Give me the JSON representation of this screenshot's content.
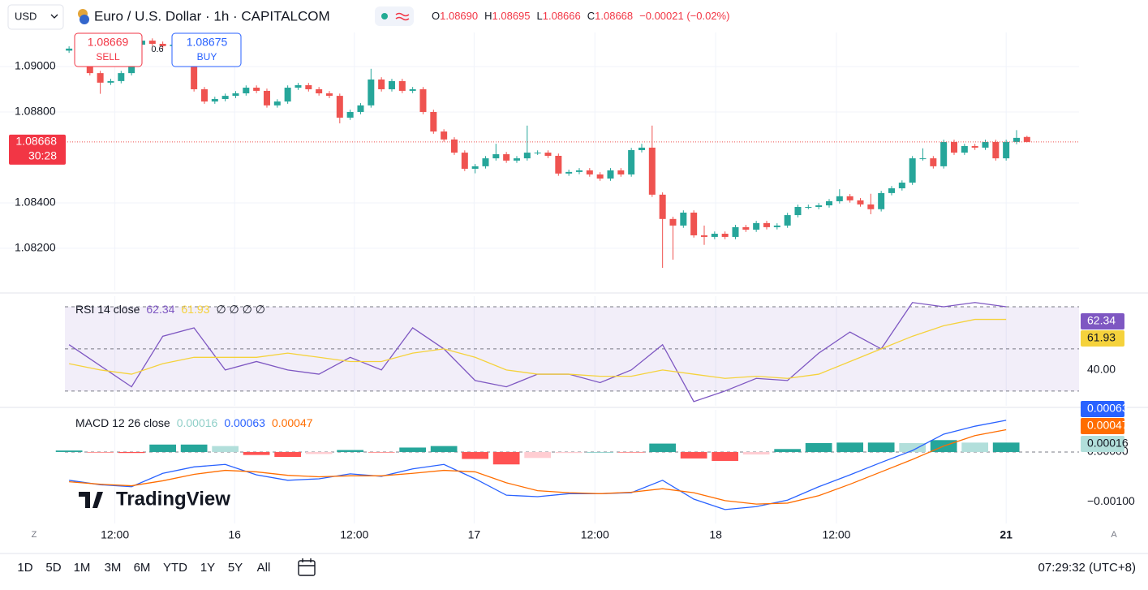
{
  "toolbar": {
    "currency": "USD",
    "title": "Euro / U.S. Dollar · 1h · CAPITALCOM",
    "ohlc": [
      {
        "key": "O",
        "value": "1.08690"
      },
      {
        "key": "H",
        "value": "1.08695"
      },
      {
        "key": "L",
        "value": "1.08666"
      },
      {
        "key": "C",
        "value": "1.08668"
      }
    ],
    "change": "−0.00021 (−0.02%)"
  },
  "trade": {
    "sell_price": 1.08669,
    "sell": "SELL",
    "spread": 0.6,
    "buy_price": 1.08675,
    "buy": "BUY"
  },
  "chart_data": [
    {
      "type": "candlestick",
      "xlim": [
        -0.4,
        97
      ],
      "ylim": [
        1.08014,
        1.0915
      ],
      "xticks": [
        {
          "value": 4.4,
          "label": "12:00"
        },
        {
          "value": 15.9,
          "label": "16"
        },
        {
          "value": 27.4,
          "label": "12:00"
        },
        {
          "value": 38.9,
          "label": "17"
        },
        {
          "value": 50.5,
          "label": "12:00"
        },
        {
          "value": 62.1,
          "label": "18"
        },
        {
          "value": 73.7,
          "label": "12:00"
        },
        {
          "value": 90,
          "label": "21"
        }
      ],
      "yticks": [
        {
          "value": 1.09,
          "label": "1.09000"
        },
        {
          "value": 1.088,
          "label": "1.08800"
        },
        {
          "value": 1.084,
          "label": "1.08400"
        },
        {
          "value": 1.082,
          "label": "1.08200"
        }
      ],
      "grid": true,
      "up_color": "#26a69a",
      "down_color": "#ef5350",
      "open": [
        1.0907,
        1.09079,
        1.09085,
        1.08971,
        1.08929,
        1.08936,
        1.08971,
        1.09096,
        1.09114,
        1.091,
        1.0909,
        1.09096,
        1.09079,
        1.089,
        1.08846,
        1.08857,
        1.08871,
        1.08882,
        1.08907,
        1.08893,
        1.08829,
        1.08846,
        1.08907,
        1.08918,
        1.089,
        1.08882,
        1.08871,
        1.08775,
        1.088,
        1.08829,
        1.08943,
        1.089,
        1.08936,
        1.08893,
        1.089,
        1.088,
        1.08714,
        1.08679,
        1.08621,
        1.0855,
        1.08561,
        1.08596,
        1.08614,
        1.08586,
        1.08596,
        1.08621,
        1.08621,
        1.08607,
        1.08529,
        1.08536,
        1.08543,
        1.08525,
        1.08507,
        1.08543,
        1.08525,
        1.08632,
        1.08643,
        1.08436,
        1.08329,
        1.083,
        1.08357,
        1.08257,
        1.0825,
        1.08264,
        1.0825,
        1.08293,
        1.08282,
        1.08311,
        1.08293,
        1.083,
        1.08346,
        1.08382,
        1.08382,
        1.08389,
        1.08407,
        1.08429,
        1.08411,
        1.08393,
        1.08372,
        1.08443,
        1.08464,
        1.08489,
        1.08596,
        1.08596,
        1.08561,
        1.08668,
        1.08621,
        1.0865,
        1.08643,
        1.08668,
        1.08596,
        1.08668,
        1.0869
      ],
      "high": [
        1.09089,
        1.09095,
        1.09095,
        1.08981,
        1.08946,
        1.08981,
        1.09106,
        1.09124,
        1.09124,
        1.0911,
        1.09106,
        1.09106,
        1.09089,
        1.0891,
        1.08867,
        1.08881,
        1.08892,
        1.08917,
        1.08917,
        1.08903,
        1.08856,
        1.08917,
        1.08928,
        1.08928,
        1.0891,
        1.08892,
        1.08881,
        1.0881,
        1.08839,
        1.0899,
        1.08953,
        1.08946,
        1.08946,
        1.0891,
        1.0891,
        1.0881,
        1.08724,
        1.08689,
        1.08631,
        1.08571,
        1.08606,
        1.0866,
        1.08624,
        1.08606,
        1.0874,
        1.08631,
        1.08631,
        1.08617,
        1.08546,
        1.08553,
        1.08553,
        1.08535,
        1.08553,
        1.08553,
        1.08642,
        1.0866,
        1.0874,
        1.08446,
        1.08339,
        1.08367,
        1.08367,
        1.083,
        1.08274,
        1.08274,
        1.08303,
        1.08303,
        1.08321,
        1.08321,
        1.0831,
        1.08356,
        1.08392,
        1.08392,
        1.08399,
        1.08417,
        1.0846,
        1.08439,
        1.08421,
        1.0844,
        1.08453,
        1.08474,
        1.08499,
        1.08606,
        1.0864,
        1.08606,
        1.08678,
        1.08678,
        1.0866,
        1.0866,
        1.08678,
        1.08678,
        1.08678,
        1.0872,
        1.08695
      ],
      "low": [
        1.0906,
        1.09069,
        1.08961,
        1.0888,
        1.08919,
        1.08926,
        1.08961,
        1.09086,
        1.0909,
        1.0908,
        1.0908,
        1.09069,
        1.0889,
        1.08836,
        1.08836,
        1.08847,
        1.08861,
        1.08872,
        1.08883,
        1.08819,
        1.08819,
        1.08836,
        1.08897,
        1.0889,
        1.08872,
        1.08861,
        1.0875,
        1.08765,
        1.0879,
        1.08819,
        1.0889,
        1.0889,
        1.08883,
        1.08883,
        1.0879,
        1.08704,
        1.08669,
        1.08611,
        1.0854,
        1.0853,
        1.08551,
        1.08586,
        1.08576,
        1.08576,
        1.08586,
        1.08611,
        1.08597,
        1.08519,
        1.08519,
        1.08526,
        1.08515,
        1.08497,
        1.08497,
        1.08515,
        1.08515,
        1.08622,
        1.08426,
        1.08114,
        1.0815,
        1.0829,
        1.08247,
        1.08215,
        1.0824,
        1.0824,
        1.0824,
        1.08272,
        1.08272,
        1.08283,
        1.08283,
        1.0829,
        1.08336,
        1.08372,
        1.08372,
        1.08379,
        1.08397,
        1.08401,
        1.08383,
        1.0835,
        1.08362,
        1.08433,
        1.08454,
        1.08479,
        1.08586,
        1.08551,
        1.08551,
        1.08611,
        1.08611,
        1.08633,
        1.08633,
        1.08586,
        1.08586,
        1.08658,
        1.08666
      ],
      "close": [
        1.09079,
        1.09085,
        1.08971,
        1.08929,
        1.08936,
        1.08971,
        1.09096,
        1.09114,
        1.091,
        1.0909,
        1.09096,
        1.09079,
        1.089,
        1.08846,
        1.08857,
        1.08871,
        1.08882,
        1.08907,
        1.08893,
        1.08829,
        1.08846,
        1.08907,
        1.08918,
        1.089,
        1.08882,
        1.08871,
        1.08775,
        1.088,
        1.08829,
        1.08943,
        1.089,
        1.08936,
        1.08893,
        1.089,
        1.088,
        1.08714,
        1.08679,
        1.08621,
        1.0855,
        1.08561,
        1.08596,
        1.08614,
        1.08586,
        1.08596,
        1.08621,
        1.08621,
        1.08607,
        1.08529,
        1.08536,
        1.08543,
        1.08525,
        1.08507,
        1.08543,
        1.08525,
        1.08632,
        1.08643,
        1.08436,
        1.08329,
        1.083,
        1.08357,
        1.08257,
        1.0825,
        1.08264,
        1.0825,
        1.08293,
        1.08282,
        1.08311,
        1.08293,
        1.083,
        1.08346,
        1.08382,
        1.08382,
        1.08389,
        1.08407,
        1.08429,
        1.08411,
        1.08393,
        1.08372,
        1.08443,
        1.08464,
        1.08489,
        1.08596,
        1.08596,
        1.08561,
        1.08668,
        1.08621,
        1.0865,
        1.08643,
        1.08668,
        1.08596,
        1.08668,
        1.08686,
        1.08668
      ],
      "last_price": 1.08668,
      "countdown": "30:28"
    },
    {
      "type": "line",
      "title": "RSI 14 close",
      "extra": "∅ ∅ ∅ ∅",
      "xlim": [
        -0.4,
        97
      ],
      "ylim": [
        23,
        75
      ],
      "yticks": [
        {
          "value": 40,
          "label": "40.00"
        }
      ],
      "levels": [
        70,
        50,
        30
      ],
      "band_color": "#7e57c2",
      "x": [
        0,
        3,
        6,
        9,
        12,
        15,
        18,
        21,
        24,
        27,
        30,
        33,
        36,
        39,
        42,
        45,
        48,
        51,
        54,
        57,
        60,
        63,
        66,
        69,
        72,
        75,
        78,
        81,
        84,
        87,
        90
      ],
      "series": [
        {
          "color": "#7e57c2",
          "last": 62.34,
          "values": [
            52,
            42,
            32,
            56,
            60,
            40,
            44,
            40,
            38,
            46,
            40,
            60,
            50,
            35,
            32,
            38,
            38,
            34,
            40,
            52,
            25,
            30,
            36,
            35,
            48,
            58,
            50,
            72,
            70,
            72,
            70
          ]
        },
        {
          "color": "#f5d23c",
          "last": 61.93,
          "values": [
            43,
            40,
            38,
            43,
            46,
            46,
            46,
            48,
            46,
            44,
            44,
            48,
            50,
            46,
            40,
            38,
            38,
            37,
            37,
            40,
            38,
            36,
            37,
            36,
            38,
            44,
            50,
            56,
            61,
            64,
            64
          ]
        }
      ]
    },
    {
      "type": "macd",
      "title": "MACD 12 26 close",
      "xlim": [
        -0.4,
        97
      ],
      "ylim": [
        -0.00144,
        0.00085
      ],
      "yticks": [
        {
          "value": 0,
          "label": "0.00000"
        },
        {
          "value": -0.001,
          "label": "−0.00100"
        }
      ],
      "x": [
        0,
        3,
        6,
        9,
        12,
        15,
        18,
        21,
        24,
        27,
        30,
        33,
        36,
        39,
        42,
        45,
        48,
        51,
        54,
        57,
        60,
        63,
        66,
        69,
        72,
        75,
        78,
        81,
        84,
        87,
        90
      ],
      "histogram": {
        "last": 0.00016,
        "label_color": "#b2dfdb",
        "colors": [
          "#26a69a",
          "#b2dfdb",
          "#ffcdd2",
          "#ff5252"
        ],
        "values": [
          3e-05,
          -1e-05,
          -2e-05,
          0.00015,
          0.00015,
          0.00012,
          -6e-05,
          -0.0001,
          -4e-05,
          4e-05,
          -1e-05,
          9e-05,
          0.00012,
          -0.00014,
          -0.00025,
          -0.00012,
          -2e-05,
          0,
          -1e-05,
          0.00017,
          -0.00013,
          -0.00018,
          -5e-05,
          6e-05,
          0.00018,
          0.00019,
          0.00019,
          0.00018,
          0.00024,
          0.00019,
          0.00019
        ]
      },
      "series": [
        {
          "color": "#2962ff",
          "last": 0.00063,
          "values": [
            -0.00057,
            -0.00066,
            -0.0007,
            -0.00043,
            -0.0003,
            -0.00025,
            -0.00046,
            -0.00057,
            -0.00054,
            -0.00044,
            -0.00049,
            -0.00034,
            -0.00025,
            -0.00054,
            -0.00087,
            -0.0009,
            -0.00084,
            -0.00084,
            -0.00082,
            -0.00057,
            -0.00095,
            -0.00116,
            -0.0011,
            -0.00097,
            -0.0007,
            -0.00046,
            -0.00021,
            3e-05,
            0.00036,
            0.00052,
            0.00064
          ]
        },
        {
          "color": "#ff6d00",
          "last": 0.00047,
          "values": [
            -0.0006,
            -0.00065,
            -0.00068,
            -0.00058,
            -0.00045,
            -0.00037,
            -0.0004,
            -0.00047,
            -0.0005,
            -0.00048,
            -0.00048,
            -0.00043,
            -0.00037,
            -0.0004,
            -0.00062,
            -0.00078,
            -0.00082,
            -0.00084,
            -0.00081,
            -0.00074,
            -0.00082,
            -0.00098,
            -0.00105,
            -0.00103,
            -0.00088,
            -0.00065,
            -0.0004,
            -0.00015,
            0.00012,
            0.00033,
            0.00045
          ]
        }
      ]
    }
  ],
  "scale_buttons": [
    "Z",
    "A"
  ],
  "logo": "TradingView",
  "range_buttons": [
    "1D",
    "5D",
    "1M",
    "3M",
    "6M",
    "YTD",
    "1Y",
    "5Y",
    "All"
  ],
  "clock": "07:29:32 (UTC+8)"
}
